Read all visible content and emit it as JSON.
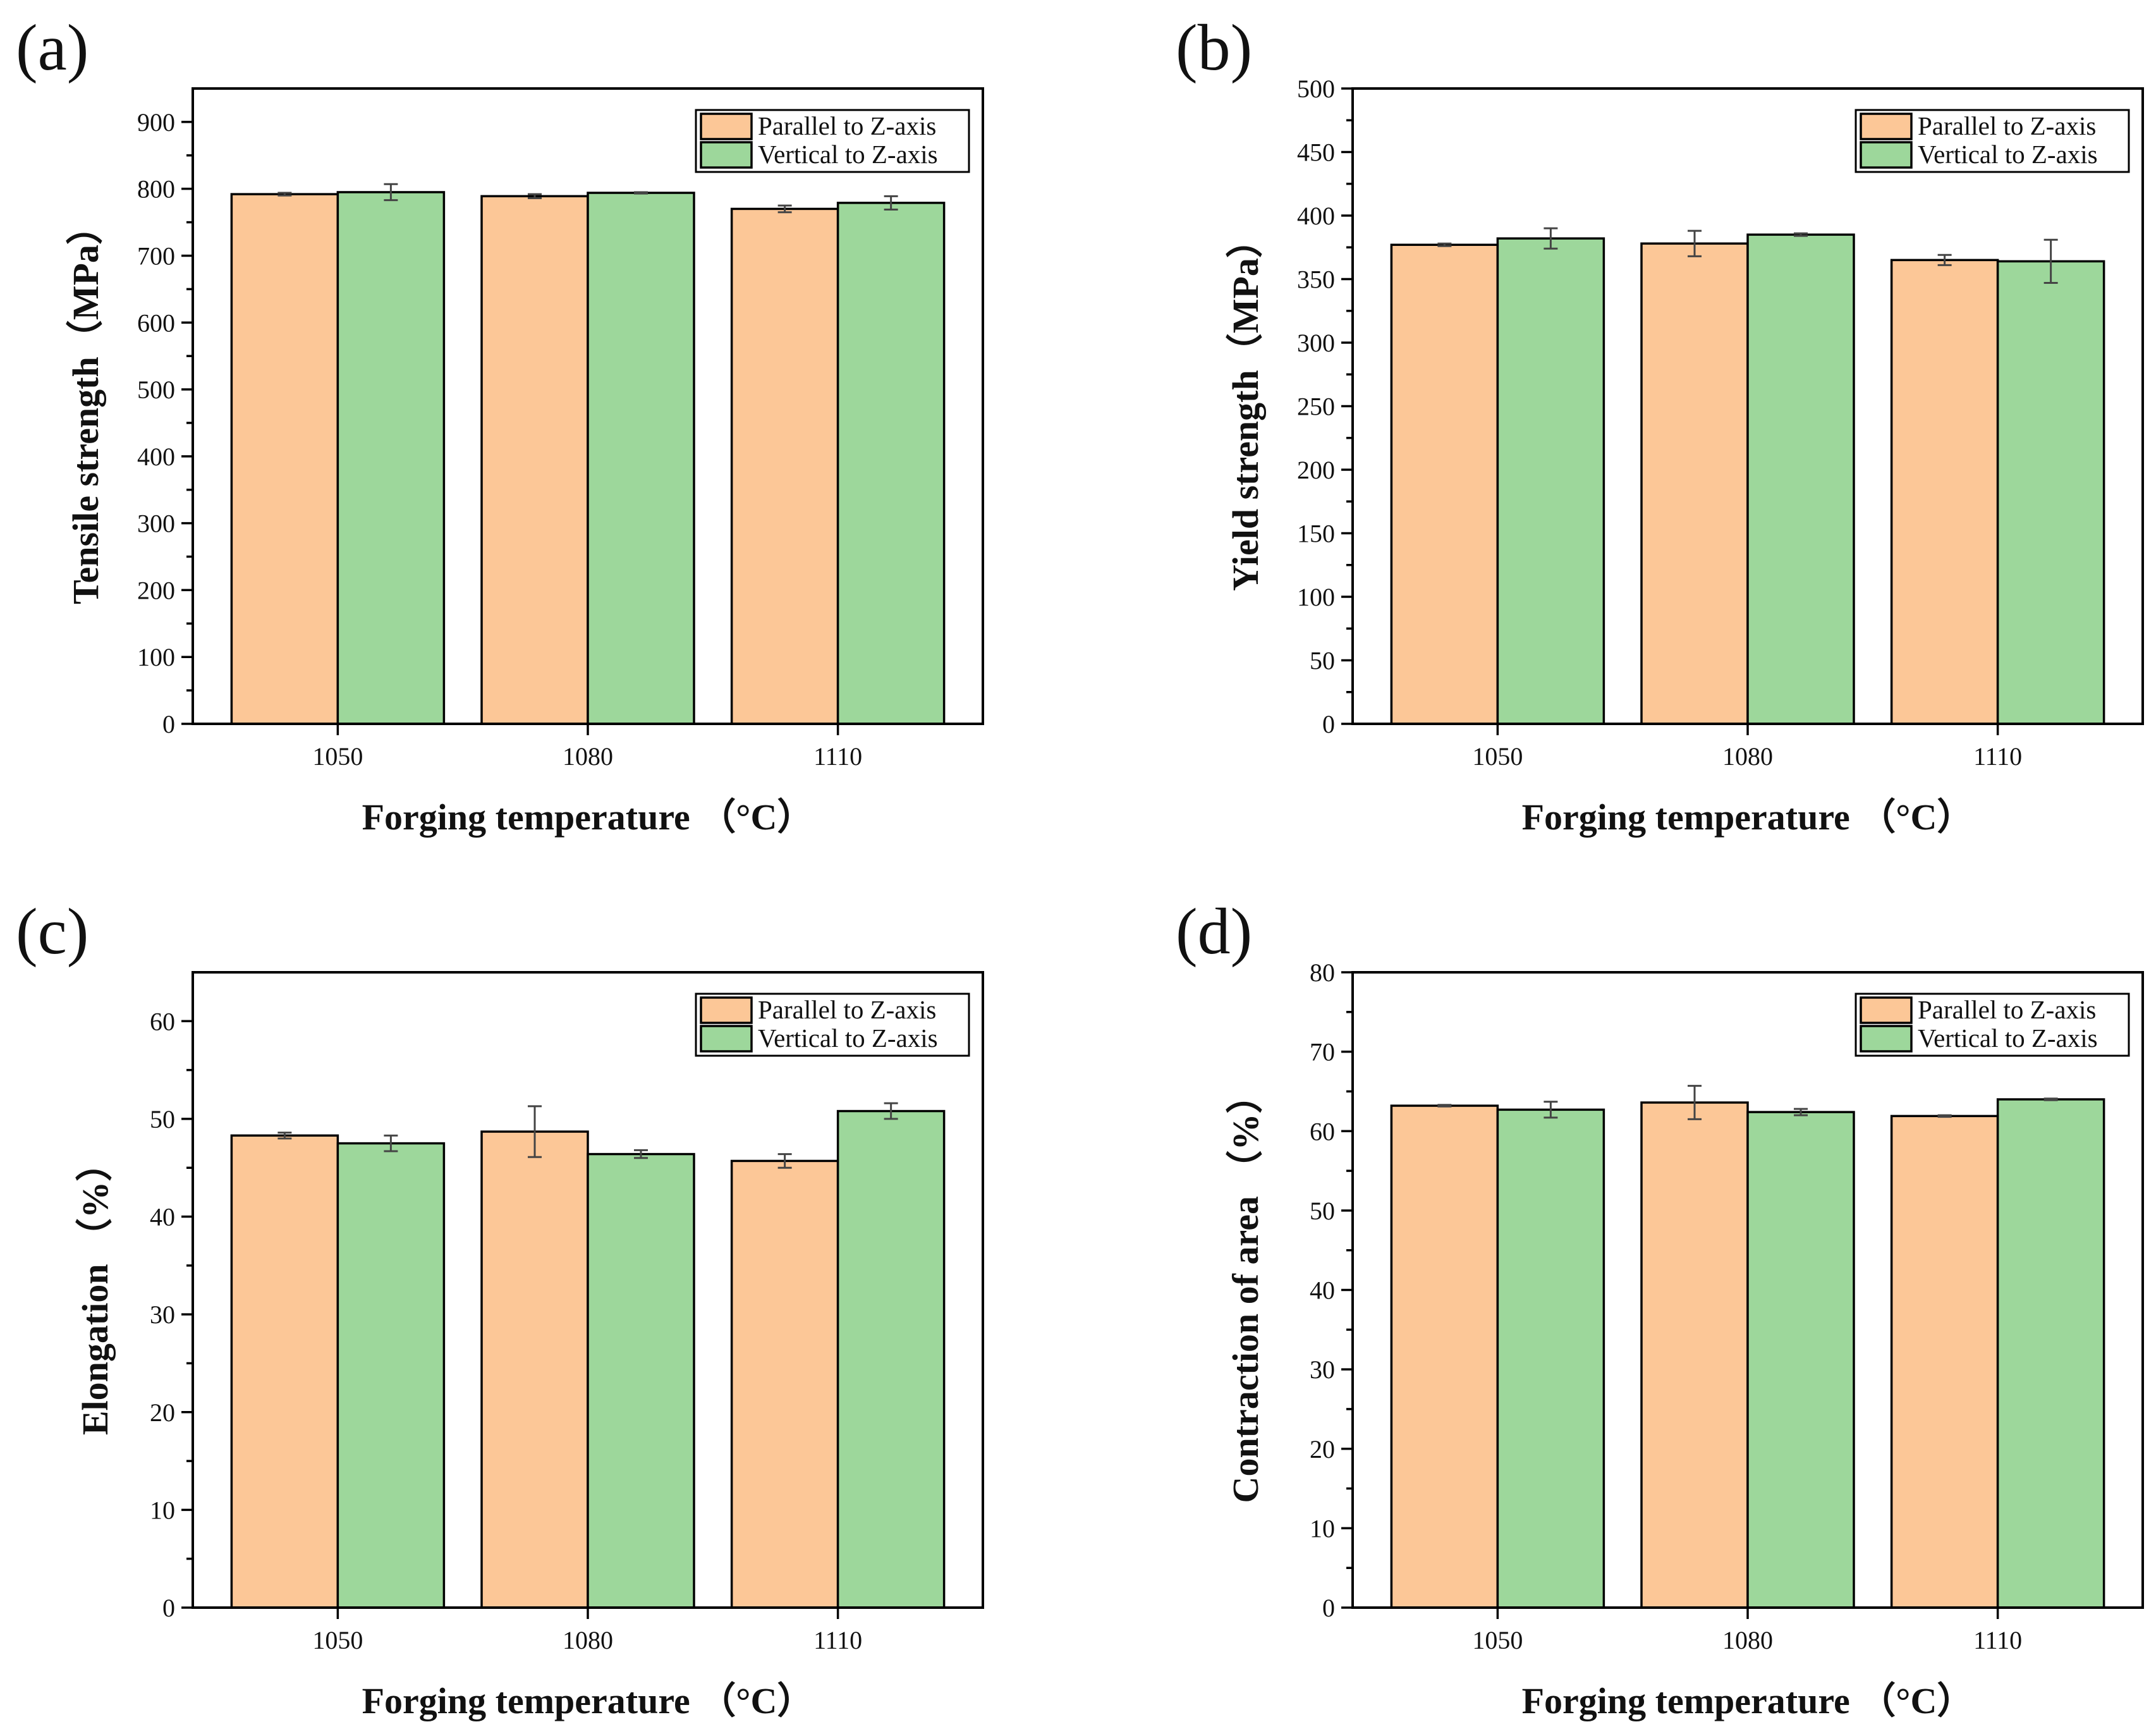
{
  "colors": {
    "parallel": "#FCC797",
    "vertical": "#9DD79B"
  },
  "chart_data": [
    {
      "type": "bar",
      "panel_label": "(a)",
      "title": "",
      "xlabel": "Forging temperature （°C）",
      "ylabel": "Tensile strength（MPa）",
      "categories": [
        "1050",
        "1080",
        "1110"
      ],
      "ylim": [
        0,
        950
      ],
      "yticks": [
        0,
        100,
        200,
        300,
        400,
        500,
        600,
        700,
        800,
        900
      ],
      "legend_position": "top-right",
      "series": [
        {
          "name": "Parallel to Z-axis",
          "values": [
            792,
            789,
            770
          ],
          "errors": [
            2,
            3,
            5
          ]
        },
        {
          "name": "Vertical to Z-axis",
          "values": [
            795,
            794,
            779
          ],
          "errors": [
            12,
            1,
            10
          ]
        }
      ]
    },
    {
      "type": "bar",
      "panel_label": "(b)",
      "title": "",
      "xlabel": "Forging temperature （°C）",
      "ylabel": "Yield strength（MPa）",
      "categories": [
        "1050",
        "1080",
        "1110"
      ],
      "ylim": [
        0,
        500
      ],
      "yticks": [
        0,
        50,
        100,
        150,
        200,
        250,
        300,
        350,
        400,
        450,
        500
      ],
      "legend_position": "top-right",
      "series": [
        {
          "name": "Parallel to Z-axis",
          "values": [
            377,
            378,
            365
          ],
          "errors": [
            1,
            10,
            4
          ]
        },
        {
          "name": "Vertical to Z-axis",
          "values": [
            382,
            385,
            364
          ],
          "errors": [
            8,
            1,
            17
          ]
        }
      ]
    },
    {
      "type": "bar",
      "panel_label": "(c)",
      "title": "",
      "xlabel": "Forging temperature （°C）",
      "ylabel": "Elongation （%）",
      "categories": [
        "1050",
        "1080",
        "1110"
      ],
      "ylim": [
        0,
        65
      ],
      "yticks": [
        0,
        10,
        20,
        30,
        40,
        50,
        60
      ],
      "legend_position": "top-right",
      "series": [
        {
          "name": "Parallel to Z-axis",
          "values": [
            48.3,
            48.7,
            45.7
          ],
          "errors": [
            0.3,
            2.6,
            0.7
          ]
        },
        {
          "name": "Vertical to Z-axis",
          "values": [
            47.5,
            46.4,
            50.8
          ],
          "errors": [
            0.8,
            0.4,
            0.8
          ]
        }
      ]
    },
    {
      "type": "bar",
      "panel_label": "(d)",
      "title": "",
      "xlabel": "Forging temperature （°C）",
      "ylabel": "Contraction of area （%）",
      "categories": [
        "1050",
        "1080",
        "1110"
      ],
      "ylim": [
        0,
        80
      ],
      "yticks": [
        0,
        10,
        20,
        30,
        40,
        50,
        60,
        70,
        80
      ],
      "legend_position": "top-right",
      "series": [
        {
          "name": "Parallel to Z-axis",
          "values": [
            63.2,
            63.6,
            61.9
          ],
          "errors": [
            0.1,
            2.1,
            0.1
          ]
        },
        {
          "name": "Vertical to Z-axis",
          "values": [
            62.7,
            62.4,
            64.0
          ],
          "errors": [
            1.0,
            0.4,
            0.1
          ]
        }
      ]
    }
  ]
}
